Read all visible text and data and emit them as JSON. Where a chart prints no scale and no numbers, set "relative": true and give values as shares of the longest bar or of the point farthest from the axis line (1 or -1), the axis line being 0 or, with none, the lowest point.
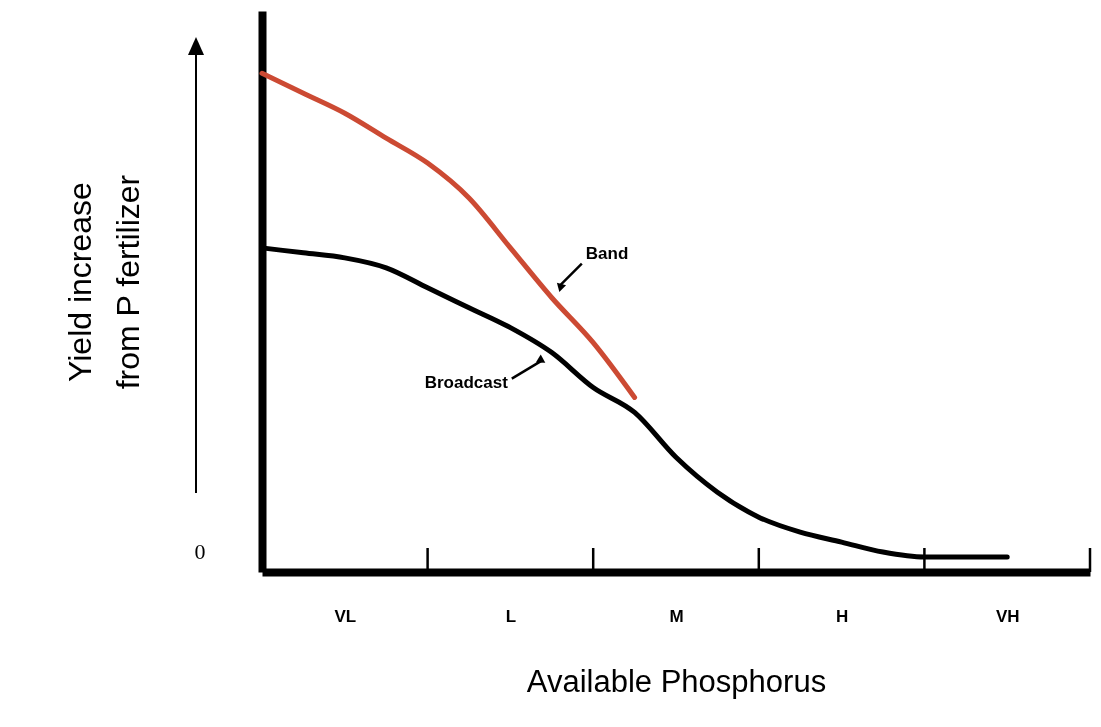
{
  "chart_data": {
    "type": "line",
    "relative": true,
    "xlabel": "Available Phosphorus",
    "ylabel": "Yield increase\nfrom P fertilizer",
    "categories": [
      null,
      null,
      "VL",
      null,
      null,
      null,
      "L",
      null,
      null,
      null,
      "M",
      null,
      null,
      null,
      "H",
      null,
      null,
      null,
      "VH",
      null,
      null
    ],
    "series": [
      {
        "name": "Band",
        "color": "#cc4a33",
        "values": [
          1.0,
          0.96,
          0.92,
          0.87,
          0.82,
          0.75,
          0.65,
          0.55,
          0.46,
          0.35,
          null,
          null,
          null,
          null,
          null,
          null,
          null,
          null,
          null,
          null,
          null
        ]
      },
      {
        "name": "Broadcast",
        "color": "#000000",
        "values": [
          0.65,
          0.64,
          0.63,
          0.61,
          0.57,
          0.53,
          0.49,
          0.44,
          0.37,
          0.32,
          0.23,
          0.16,
          0.11,
          0.08,
          0.06,
          0.04,
          0.03,
          0.03,
          0.03,
          null,
          null
        ]
      }
    ],
    "annotations": [
      "0"
    ],
    "grid": false,
    "marker": "none",
    "line_style": "solid"
  }
}
